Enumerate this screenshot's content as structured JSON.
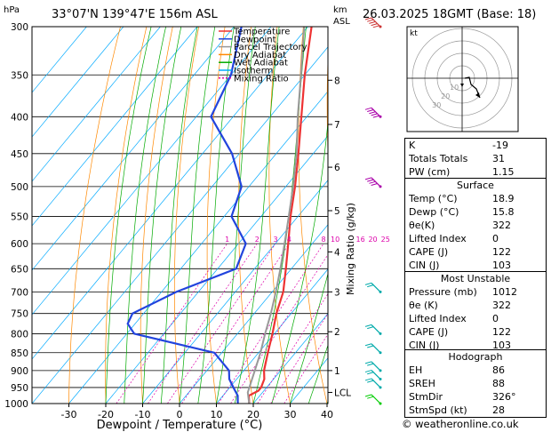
{
  "header": {
    "unit_hpa": "hPa",
    "location": "33°07'N  139°47'E  156m  ASL",
    "km_label": "km",
    "asl_label": "ASL",
    "datetime": "26.03.2025  18GMT  (Base: 18)"
  },
  "legend": [
    {
      "label": "Temperature",
      "color": "#ee3333"
    },
    {
      "label": "Dewpoint",
      "color": "#2244dd"
    },
    {
      "label": "Parcel Trajectory",
      "color": "#999999"
    },
    {
      "label": "Dry Adiabat",
      "color": "#ff8800"
    },
    {
      "label": "Wet Adiabat",
      "color": "#00aa00"
    },
    {
      "label": "Isotherm",
      "color": "#00aaff"
    },
    {
      "label": "Mixing Ratio",
      "color": "#dd00aa"
    }
  ],
  "chart_data": {
    "type": "line",
    "xlabel": "Dewpoint / Temperature (°C)",
    "ylabel": "Mixing Ratio (g/kg)",
    "x_ticks": [
      -30,
      -20,
      -10,
      0,
      10,
      20,
      30,
      40
    ],
    "xlim": [
      -40,
      40
    ],
    "ylim": [
      1000,
      300
    ],
    "y_scale": "log",
    "pressure_ticks": [
      300,
      350,
      400,
      450,
      500,
      550,
      600,
      650,
      700,
      750,
      800,
      850,
      900,
      950,
      1000
    ],
    "km_ticks": [
      {
        "label": "8",
        "p": 356
      },
      {
        "label": "7",
        "p": 410
      },
      {
        "label": "6",
        "p": 470
      },
      {
        "label": "5",
        "p": 540
      },
      {
        "label": "4",
        "p": 616
      },
      {
        "label": "3",
        "p": 700
      },
      {
        "label": "2",
        "p": 795
      },
      {
        "label": "1",
        "p": 900
      },
      {
        "label": "LCL",
        "p": 965
      }
    ],
    "mixing_ratio_labels": [
      "1",
      "2",
      "3",
      "4",
      "8",
      "10",
      "16",
      "20",
      "25"
    ],
    "mixing_ratio_values": [
      1,
      2,
      3,
      4,
      8,
      10,
      16,
      20,
      25
    ],
    "series": [
      {
        "name": "Temperature",
        "p": [
          1000,
          975,
          960,
          950,
          925,
          900,
          850,
          800,
          750,
          700,
          650,
          600,
          550,
          500,
          450,
          400,
          350,
          300
        ],
        "t": [
          18.9,
          17.0,
          18.5,
          18.5,
          17.5,
          15.5,
          12.5,
          9.5,
          6.0,
          3.0,
          -1.5,
          -6.5,
          -12.0,
          -17.5,
          -24.0,
          -31.5,
          -40.0,
          -49.0
        ]
      },
      {
        "name": "Dewpoint",
        "p": [
          1000,
          975,
          950,
          925,
          900,
          850,
          800,
          775,
          750,
          700,
          650,
          600,
          550,
          500,
          450,
          400,
          350,
          300
        ],
        "t": [
          15.8,
          14.0,
          11.0,
          8.0,
          6.0,
          -2.0,
          -28.0,
          -32.0,
          -33.0,
          -26.0,
          -15.0,
          -18.0,
          -28.0,
          -32.0,
          -42.0,
          -56.0,
          -60.0,
          -68.0
        ]
      },
      {
        "name": "Parcel Trajectory",
        "p": [
          1000,
          965,
          900,
          850,
          800,
          750,
          700,
          650,
          600,
          550,
          500,
          450,
          400,
          350,
          300
        ],
        "t": [
          18.9,
          16.0,
          13.0,
          10.5,
          7.5,
          4.5,
          1.0,
          -3.0,
          -7.5,
          -12.5,
          -18.0,
          -24.5,
          -32.5,
          -41.0,
          -51.0
        ]
      }
    ],
    "wind_barbs": [
      {
        "p": 300,
        "speed_kt": 60
      },
      {
        "p": 400,
        "speed_kt": 50
      },
      {
        "p": 500,
        "speed_kt": 35
      },
      {
        "p": 700,
        "speed_kt": 15
      },
      {
        "p": 800,
        "speed_kt": 15
      },
      {
        "p": 850,
        "speed_kt": 15
      },
      {
        "p": 900,
        "speed_kt": 20
      },
      {
        "p": 925,
        "speed_kt": 20
      },
      {
        "p": 950,
        "speed_kt": 20
      },
      {
        "p": 1000,
        "speed_kt": 15
      }
    ]
  },
  "hodograph": {
    "unit": "kt",
    "ring_labels": [
      "10",
      "20",
      "30"
    ]
  },
  "indices": [
    {
      "label": "K",
      "value": "-19"
    },
    {
      "label": "Totals Totals",
      "value": "31"
    },
    {
      "label": "PW (cm)",
      "value": "1.15"
    }
  ],
  "surface": {
    "title": "Surface",
    "rows": [
      {
        "label": "Temp (°C)",
        "value": "18.9"
      },
      {
        "label": "Dewp (°C)",
        "value": "15.8"
      },
      {
        "label": "θe(K)",
        "value": "322"
      },
      {
        "label": "Lifted Index",
        "value": "0"
      },
      {
        "label": "CAPE (J)",
        "value": "122"
      },
      {
        "label": "CIN (J)",
        "value": "103"
      }
    ]
  },
  "most_unstable": {
    "title": "Most Unstable",
    "rows": [
      {
        "label": "Pressure (mb)",
        "value": "1012"
      },
      {
        "label": "θe (K)",
        "value": "322"
      },
      {
        "label": "Lifted Index",
        "value": "0"
      },
      {
        "label": "CAPE (J)",
        "value": "122"
      },
      {
        "label": "CIN (J)",
        "value": "103"
      }
    ]
  },
  "hodograph_table": {
    "title": "Hodograph",
    "rows": [
      {
        "label": "EH",
        "value": "86"
      },
      {
        "label": "SREH",
        "value": "88"
      },
      {
        "label": "StmDir",
        "value": "326°"
      },
      {
        "label": "StmSpd (kt)",
        "value": "28"
      }
    ]
  },
  "footer": "© weatheronline.co.uk"
}
